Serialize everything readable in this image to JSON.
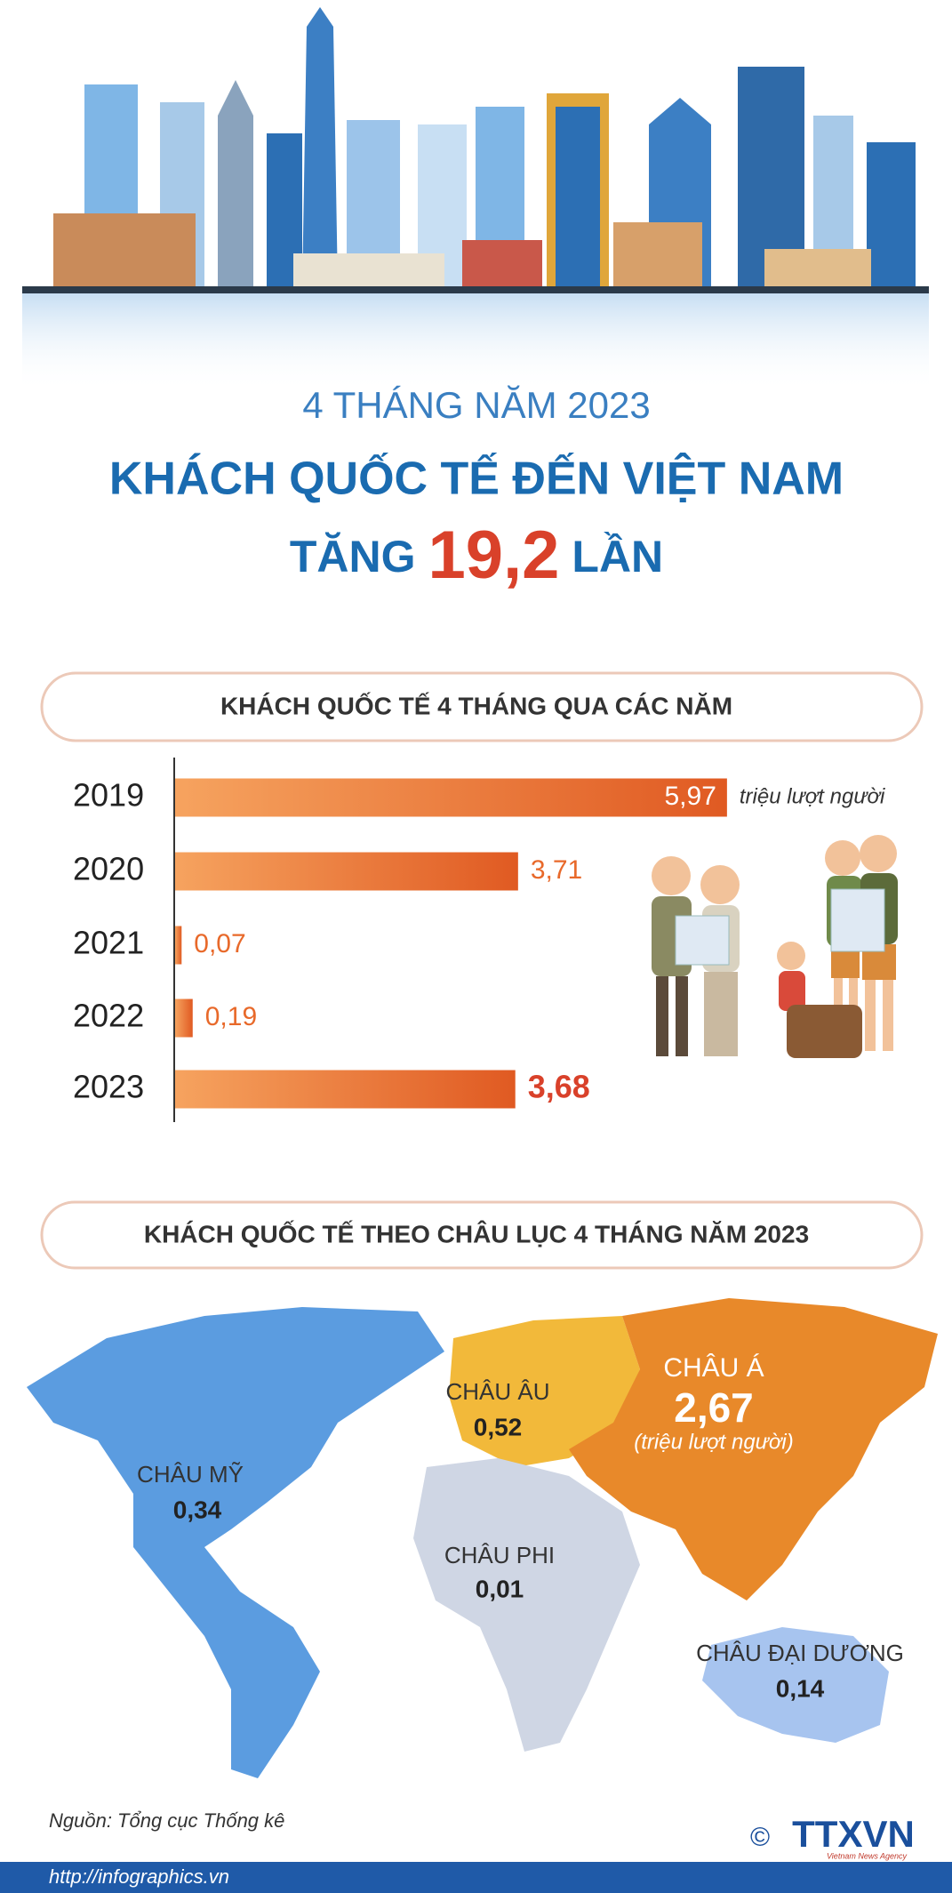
{
  "header": {
    "subtitle": "4 THÁNG NĂM 2023",
    "title": "KHÁCH QUỐC TẾ ĐẾN VIỆT NAM",
    "growth_prefix": "TĂNG",
    "growth_value": "19,2",
    "growth_suffix": "LẦN"
  },
  "chart_data": {
    "type": "bar",
    "title": "KHÁCH QUỐC TẾ 4 THÁNG QUA CÁC NĂM",
    "categories": [
      "2019",
      "2020",
      "2021",
      "2022",
      "2023"
    ],
    "values": [
      5.97,
      3.71,
      0.07,
      0.19,
      3.68
    ],
    "value_labels": [
      "5,97",
      "3,71",
      "0,07",
      "0,19",
      "3,68"
    ],
    "unit": "triệu lượt người",
    "color": "#e8692a"
  },
  "map": {
    "title": "KHÁCH QUỐC TẾ THEO CHÂU LỤC 4 THÁNG NĂM  2023",
    "regions": [
      {
        "name": "CHÂU MỸ",
        "value_label": "0,34"
      },
      {
        "name": "CHÂU ÂU",
        "value_label": "0,52"
      },
      {
        "name": "CHÂU Á",
        "value_label": "2,67"
      },
      {
        "name": "CHÂU PHI",
        "value_label": "0,01"
      },
      {
        "name": "CHÂU ĐẠI DƯƠNG",
        "value_label": "0,14"
      }
    ],
    "unit": "(triệu lượt người)"
  },
  "footer": {
    "source": "Nguồn: Tổng cục Thống kê",
    "url": "http://infographics.vn",
    "copyright": "©",
    "logo": "TTXVN",
    "logo_sub": "Vietnam News Agency"
  }
}
